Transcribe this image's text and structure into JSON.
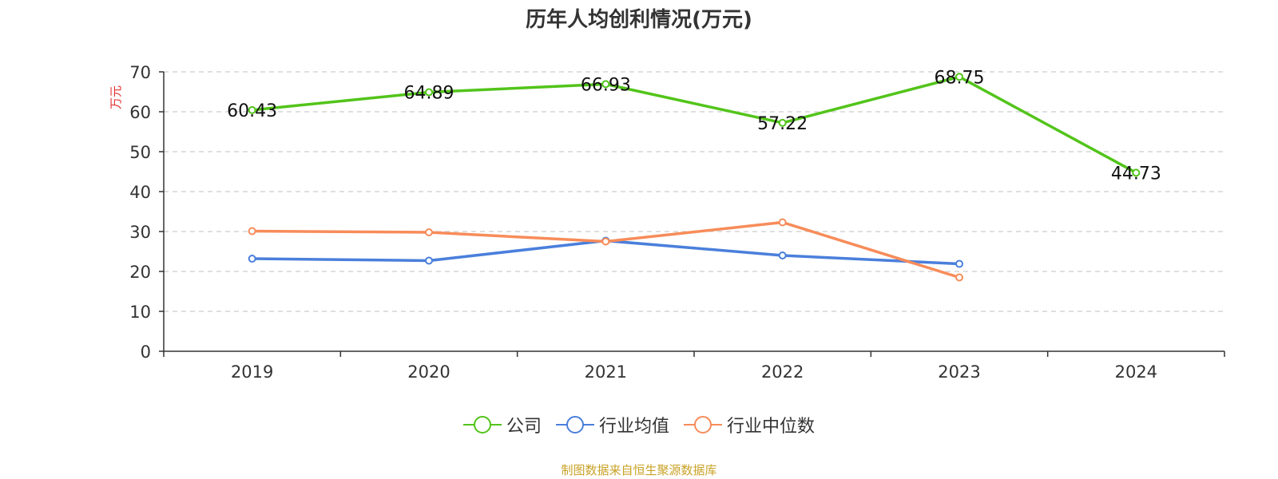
{
  "chart_data": {
    "type": "line",
    "title": "历年人均创利情况(万元)",
    "ylabel": "万元",
    "xlabel": "",
    "categories": [
      "2019",
      "2020",
      "2021",
      "2022",
      "2023",
      "2024"
    ],
    "ylim": [
      0,
      70
    ],
    "yticks": [
      "0",
      "10",
      "20",
      "30",
      "40",
      "50",
      "60",
      "70"
    ],
    "grid": true,
    "legend_position": "bottom",
    "series": [
      {
        "name": "公司",
        "color": "#52c41a",
        "values": [
          60.43,
          64.89,
          66.93,
          57.22,
          68.75,
          44.73
        ],
        "labels": [
          "60.43",
          "64.89",
          "66.93",
          "57.22",
          "68.75",
          "44.73"
        ]
      },
      {
        "name": "行业均值",
        "color": "#4a7fdb",
        "values": [
          23.2,
          22.7,
          27.7,
          24.0,
          21.9,
          null
        ]
      },
      {
        "name": "行业中位数",
        "color": "#f78c5a",
        "values": [
          30.1,
          29.8,
          27.5,
          32.3,
          18.5,
          null
        ]
      }
    ]
  },
  "source": "制图数据来自恒生聚源数据库"
}
